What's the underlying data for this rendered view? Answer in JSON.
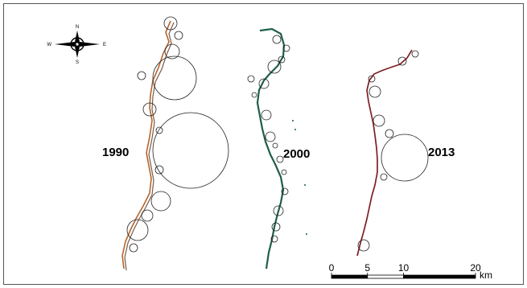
{
  "compass": {
    "north": "N",
    "south": "S",
    "east": "E",
    "west": "W"
  },
  "panels": [
    {
      "year": "1990",
      "river_color": "#b5652e",
      "river_color_secondary": "#7a5a48"
    },
    {
      "year": "2000",
      "river_color": "#1f5e4c",
      "river_color_secondary": "#143d31"
    },
    {
      "year": "2013",
      "river_color": "#7d1f22",
      "river_color_secondary": "#5c1518"
    }
  ],
  "scale_bar": {
    "tick_labels": [
      "0",
      "5",
      "10",
      "20"
    ],
    "tick_values": [
      0,
      5,
      10,
      20
    ],
    "unit": "km"
  }
}
